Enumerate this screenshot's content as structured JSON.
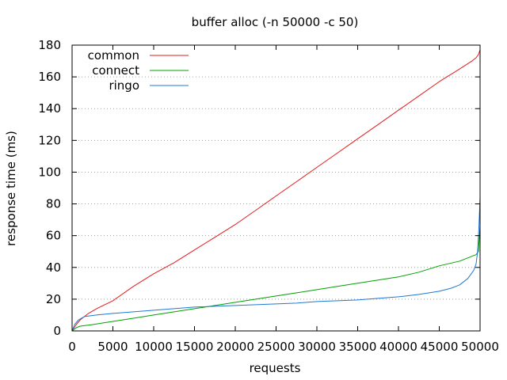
{
  "chart_data": {
    "type": "line",
    "title": "buffer alloc (-n 50000 -c 50)",
    "xlabel": "requests",
    "ylabel": "response time (ms)",
    "xlim": [
      0,
      50000
    ],
    "ylim": [
      0,
      180
    ],
    "x_ticks": [
      "0",
      "5000",
      "10000",
      "15000",
      "20000",
      "25000",
      "30000",
      "35000",
      "40000",
      "45000",
      "50000"
    ],
    "y_ticks": [
      "0",
      "20",
      "40",
      "60",
      "80",
      "100",
      "120",
      "140",
      "160",
      "180"
    ],
    "grid": "horizontal dotted",
    "legend_position": "top-left",
    "series": [
      {
        "name": "common",
        "color": "#e41a1c",
        "x": [
          0,
          500,
          1000,
          2000,
          3000,
          5000,
          7500,
          10000,
          12500,
          15000,
          17500,
          20000,
          22500,
          25000,
          27500,
          30000,
          32500,
          35000,
          37500,
          40000,
          42500,
          45000,
          47500,
          49000,
          49500,
          49800,
          50000
        ],
        "y": [
          0,
          4,
          7,
          11,
          14,
          19,
          28,
          36,
          43,
          51,
          59,
          67,
          76,
          85,
          94,
          103,
          112,
          121,
          130,
          139,
          148,
          157,
          165,
          170,
          172,
          174,
          177
        ]
      },
      {
        "name": "connect",
        "color": "#00a000",
        "x": [
          0,
          500,
          1000,
          2500,
          5000,
          7500,
          10000,
          12500,
          15000,
          17500,
          20000,
          22500,
          25000,
          27500,
          30000,
          32500,
          35000,
          37500,
          40000,
          42500,
          45000,
          47500,
          49000,
          49500,
          49800,
          50000
        ],
        "y": [
          0,
          2,
          3,
          4,
          6,
          8,
          10,
          12,
          14,
          16,
          18,
          20,
          22,
          24,
          26,
          28,
          30,
          32,
          34,
          37,
          41,
          44,
          47,
          48,
          50,
          66
        ]
      },
      {
        "name": "ringo",
        "color": "#1f78d4",
        "x": [
          0,
          300,
          800,
          1500,
          3000,
          5000,
          7500,
          10000,
          12500,
          15000,
          17500,
          20000,
          22500,
          25000,
          27500,
          30000,
          32500,
          35000,
          37500,
          40000,
          42500,
          45000,
          46500,
          47500,
          48500,
          49200,
          49500,
          49700,
          49850,
          50000
        ],
        "y": [
          0,
          4,
          7,
          9,
          10,
          11,
          12,
          13,
          14,
          15,
          15.5,
          16,
          16.5,
          17,
          17.5,
          18.5,
          19,
          19.5,
          20.5,
          21.5,
          23,
          25,
          27,
          29,
          33,
          38,
          42,
          50,
          65,
          84
        ]
      }
    ]
  }
}
